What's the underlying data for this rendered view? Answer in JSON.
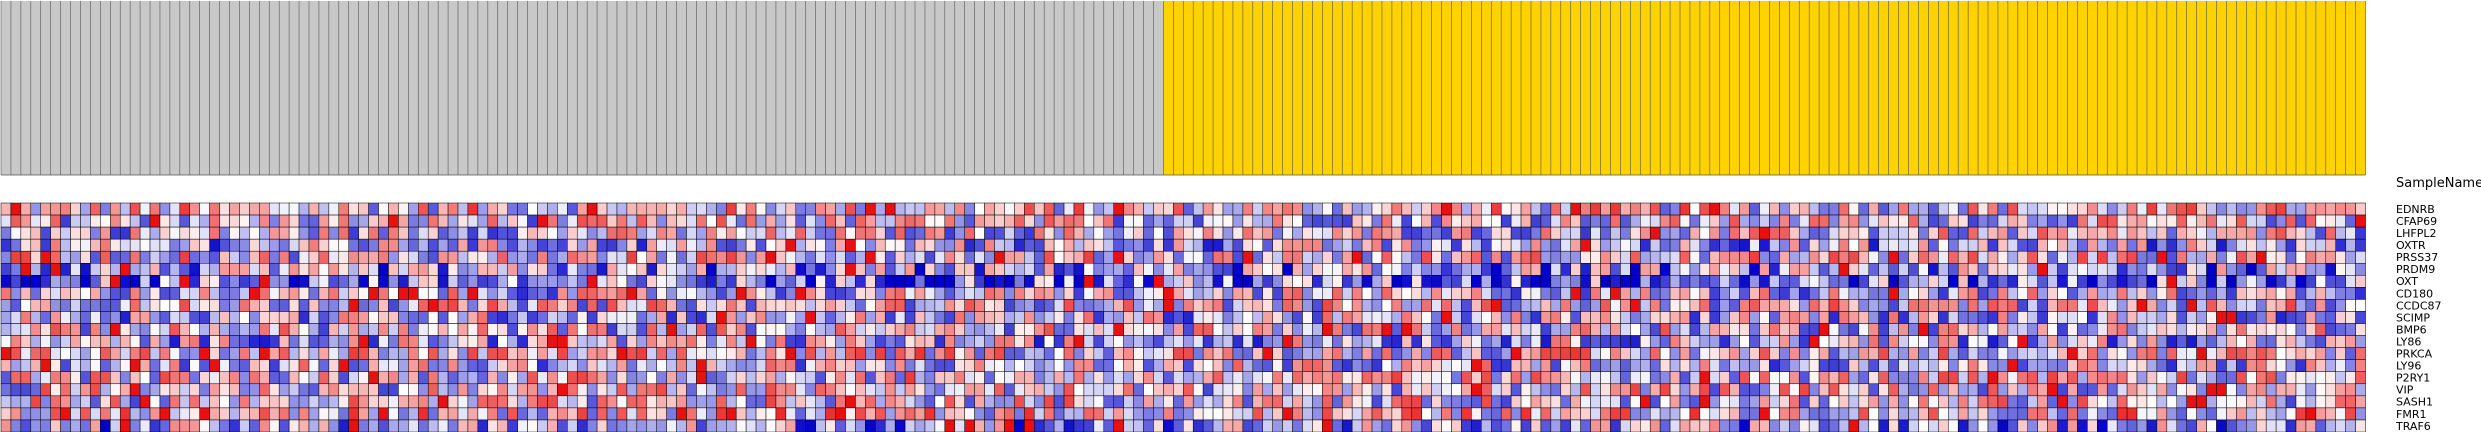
{
  "chart_data": {
    "type": "heatmap",
    "title": "SampleName",
    "rows": [
      "EDNRB",
      "CFAP69",
      "LHFPL2",
      "OXTR",
      "PRSS37",
      "PRDM9",
      "OXT",
      "CD180",
      "CCDC87",
      "SCIMP",
      "BMP6",
      "LY86",
      "PRKCA",
      "LY96",
      "P2RY1",
      "VIP",
      "SASH1",
      "FMR1",
      "TRAF6"
    ],
    "columns": {
      "count": 238,
      "header_group_size": 117,
      "labels_not_legible": true
    },
    "column_groups": [
      {
        "columns": [
          0,
          116
        ],
        "color": "#C8C8C8"
      },
      {
        "columns": [
          117,
          237
        ],
        "color": "#FFD200"
      }
    ],
    "color_scale": {
      "low": "#0000C8",
      "mid": "#FFFFFF",
      "high": "#E60000",
      "min": -3,
      "max": 3
    },
    "grid_color": "#000000",
    "values": []
  }
}
